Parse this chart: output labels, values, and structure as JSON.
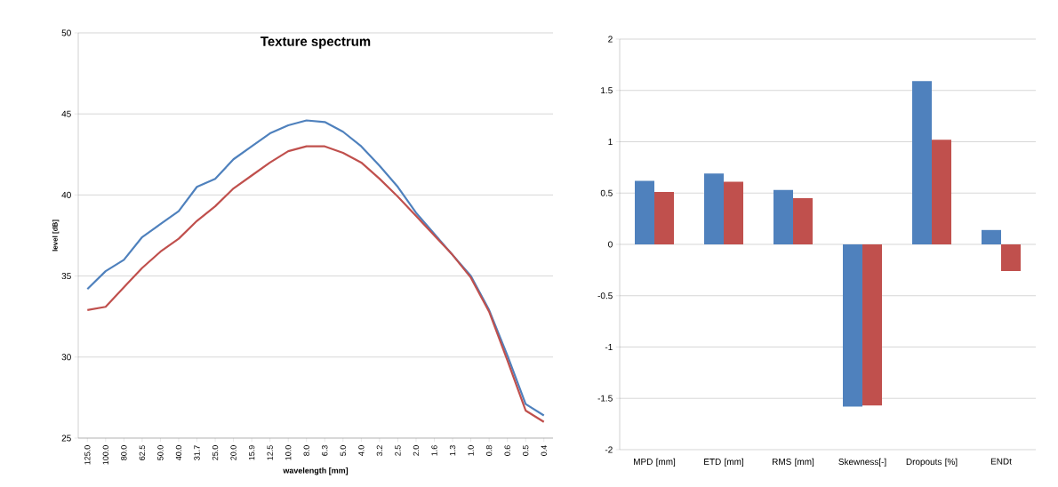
{
  "chart_data": [
    {
      "type": "line",
      "title": "Texture spectrum",
      "xlabel": "wavelength [mm]",
      "ylabel": "level [dB]",
      "categories": [
        "125.0",
        "100.0",
        "80.0",
        "62.5",
        "50.0",
        "40.0",
        "31.7",
        "25.0",
        "20.0",
        "15.9",
        "12.5",
        "10.0",
        "8.0",
        "6.3",
        "5.0",
        "4.0",
        "3.2",
        "2.5",
        "2.0",
        "1.6",
        "1.3",
        "1.0",
        "0.8",
        "0.6",
        "0.5",
        "0.4"
      ],
      "series": [
        {
          "color": "#4f81bd",
          "values": [
            34.2,
            35.3,
            36.0,
            37.4,
            38.2,
            39.0,
            40.5,
            41.0,
            42.2,
            43.0,
            43.8,
            44.3,
            44.6,
            44.5,
            43.9,
            43.0,
            41.8,
            40.5,
            38.9,
            37.6,
            36.3,
            35.0,
            32.9,
            30.1,
            27.1,
            26.4
          ]
        },
        {
          "color": "#c0504d",
          "values": [
            32.9,
            33.1,
            34.3,
            35.5,
            36.5,
            37.3,
            38.4,
            39.3,
            40.4,
            41.2,
            42.0,
            42.7,
            43.0,
            43.0,
            42.6,
            42.0,
            41.0,
            39.9,
            38.7,
            37.5,
            36.3,
            34.9,
            32.8,
            29.8,
            26.7,
            26.0
          ]
        }
      ],
      "ylim": [
        25,
        50
      ],
      "yticks": [
        25,
        30,
        35,
        40,
        45,
        50
      ],
      "grid": "y"
    },
    {
      "type": "bar",
      "categories": [
        "MPD [mm]",
        "ETD [mm]",
        "RMS [mm]",
        "Skewness[-]",
        "Dropouts [%]",
        "ENDt"
      ],
      "series": [
        {
          "color": "#4f81bd",
          "values": [
            0.62,
            0.69,
            0.53,
            -1.58,
            1.59,
            0.14
          ]
        },
        {
          "color": "#c0504d",
          "values": [
            0.51,
            0.61,
            0.45,
            -1.57,
            1.02,
            -0.26
          ]
        }
      ],
      "ylim": [
        -2,
        2
      ],
      "yticks": [
        -2,
        -1.5,
        -1,
        -0.5,
        0,
        0.5,
        1,
        1.5,
        2
      ],
      "grid": "y"
    }
  ]
}
